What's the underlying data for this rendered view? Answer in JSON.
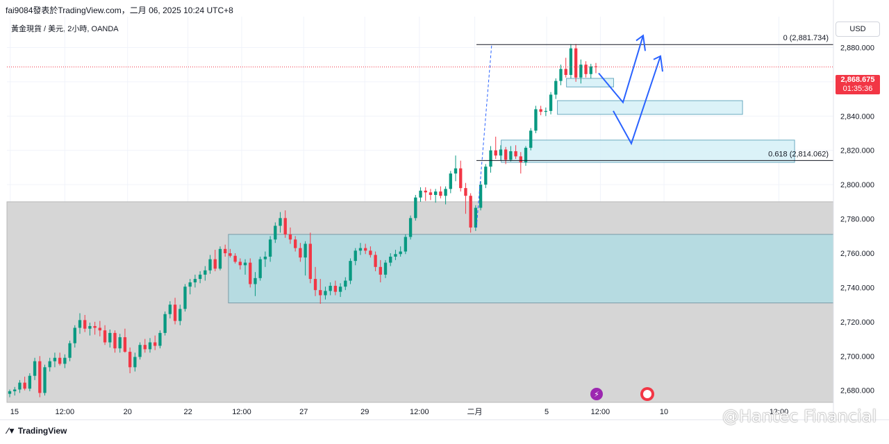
{
  "header": {
    "author_line": "fai9084發表於TradingView.com，二月 06, 2025 10:24 UTC+8",
    "symbol_line": "黃金現貨 / 美元, 2小時, OANDA",
    "currency": "USD",
    "footer_brand": "TradingView",
    "watermark": "@Hantec Financial"
  },
  "colors": {
    "up": "#089981",
    "down": "#f23645",
    "zone_grey": "#d6d6d6",
    "zone_teal": "#b2dce2",
    "zone_light": "#d7f1f7",
    "arrow": "#2962ff",
    "price_line": "#f23645"
  },
  "price_tag": {
    "price": "2,868.675",
    "countdown": "01:35:36"
  },
  "fib_labels": [
    {
      "text": "0 (2,881.734)",
      "price": 2881.734
    },
    {
      "text": "0.618 (2,814.062)",
      "price": 2814.062
    }
  ],
  "chart_data": {
    "type": "candlestick",
    "ylim": [
      2673,
      2898
    ],
    "y_ticks": [
      2680,
      2700,
      2720,
      2740,
      2760,
      2780,
      2800,
      2820,
      2840,
      2860,
      2880
    ],
    "y_tick_labels": [
      "2,680.000",
      "2,700.000",
      "2,720.000",
      "2,740.000",
      "2,760.000",
      "2,780.000",
      "2,800.000",
      "2,820.000",
      "2,840.000",
      "2,860.000",
      "2,880.000"
    ],
    "x_labels": [
      "15",
      "12:00",
      "20",
      "22",
      "12:00",
      "27",
      "29",
      "12:00",
      "二月",
      "5",
      "12:00",
      "10",
      "12:00"
    ],
    "last_price": 2868.675,
    "zones": [
      {
        "kind": "grey",
        "x_from": 0,
        "x_to": 1,
        "y_top": 2790,
        "y_bottom": 2673
      },
      {
        "kind": "teal",
        "x_from": 0.268,
        "x_to": 1,
        "y_top": 2771,
        "y_bottom": 2731
      },
      {
        "kind": "light",
        "x_from": 0.666,
        "x_to": 0.89,
        "y_top": 2849,
        "y_bottom": 2841
      },
      {
        "kind": "light",
        "x_from": 0.598,
        "x_to": 0.953,
        "y_top": 2826,
        "y_bottom": 2813
      },
      {
        "kind": "light",
        "x_from": 0.677,
        "x_to": 0.734,
        "y_top": 2862,
        "y_bottom": 2857
      }
    ],
    "candles_ohlc": [
      [
        2678.0,
        2680.5,
        2676.0,
        2679.5
      ],
      [
        2679.5,
        2682.0,
        2677.0,
        2680.5
      ],
      [
        2680.5,
        2686.0,
        2678.5,
        2684.5
      ],
      [
        2684.5,
        2688.0,
        2680.0,
        2681.0
      ],
      [
        2681.0,
        2690.0,
        2679.5,
        2688.5
      ],
      [
        2688.5,
        2699.0,
        2686.0,
        2697.0
      ],
      [
        2697.0,
        2700.0,
        2676.0,
        2678.5
      ],
      [
        2678.5,
        2695.0,
        2677.0,
        2693.5
      ],
      [
        2693.5,
        2699.0,
        2691.0,
        2697.0
      ],
      [
        2697.0,
        2702.0,
        2693.5,
        2699.0
      ],
      [
        2699.0,
        2702.0,
        2694.5,
        2695.5
      ],
      [
        2695.5,
        2701.0,
        2693.0,
        2699.0
      ],
      [
        2699.0,
        2709.0,
        2697.0,
        2707.5
      ],
      [
        2707.5,
        2718.0,
        2705.0,
        2716.5
      ],
      [
        2716.5,
        2725.0,
        2713.0,
        2721.0
      ],
      [
        2721.0,
        2724.0,
        2714.0,
        2716.0
      ],
      [
        2716.0,
        2719.5,
        2712.0,
        2717.5
      ],
      [
        2717.5,
        2720.0,
        2712.5,
        2716.5
      ],
      [
        2716.5,
        2720.5,
        2711.5,
        2715.0
      ],
      [
        2715.0,
        2718.0,
        2706.5,
        2708.0
      ],
      [
        2708.0,
        2715.5,
        2705.0,
        2713.5
      ],
      [
        2713.5,
        2715.0,
        2702.0,
        2704.5
      ],
      [
        2704.5,
        2713.0,
        2702.0,
        2711.0
      ],
      [
        2711.0,
        2716.0,
        2702.0,
        2702.5
      ],
      [
        2702.5,
        2705.0,
        2690.0,
        2693.5
      ],
      [
        2693.5,
        2702.0,
        2691.0,
        2699.5
      ],
      [
        2699.5,
        2708.0,
        2698.0,
        2706.5
      ],
      [
        2706.5,
        2710.0,
        2702.0,
        2704.0
      ],
      [
        2704.0,
        2710.5,
        2702.0,
        2708.0
      ],
      [
        2708.0,
        2712.0,
        2703.5,
        2706.0
      ],
      [
        2706.0,
        2715.0,
        2704.5,
        2713.5
      ],
      [
        2713.5,
        2726.0,
        2712.0,
        2724.5
      ],
      [
        2724.5,
        2732.0,
        2722.0,
        2730.0
      ],
      [
        2730.0,
        2734.0,
        2718.5,
        2720.5
      ],
      [
        2720.5,
        2730.0,
        2718.0,
        2727.5
      ],
      [
        2727.5,
        2742.0,
        2726.0,
        2740.5
      ],
      [
        2740.5,
        2745.0,
        2736.0,
        2743.0
      ],
      [
        2743.0,
        2747.5,
        2740.0,
        2745.0
      ],
      [
        2745.0,
        2749.5,
        2742.5,
        2747.5
      ],
      [
        2747.5,
        2752.5,
        2744.0,
        2750.0
      ],
      [
        2750.0,
        2759.0,
        2748.0,
        2756.5
      ],
      [
        2756.5,
        2762.0,
        2749.5,
        2751.0
      ],
      [
        2751.0,
        2764.0,
        2750.0,
        2762.5
      ],
      [
        2762.5,
        2765.0,
        2758.0,
        2760.0
      ],
      [
        2760.0,
        2762.5,
        2757.5,
        2758.5
      ],
      [
        2758.5,
        2760.0,
        2754.0,
        2755.0
      ],
      [
        2755.0,
        2757.0,
        2750.5,
        2753.0
      ],
      [
        2753.0,
        2756.5,
        2747.5,
        2754.5
      ],
      [
        2754.5,
        2757.0,
        2740.0,
        2742.0
      ],
      [
        2742.0,
        2749.0,
        2735.0,
        2745.5
      ],
      [
        2745.5,
        2758.0,
        2744.0,
        2756.5
      ],
      [
        2756.5,
        2761.0,
        2752.0,
        2758.0
      ],
      [
        2758.0,
        2770.0,
        2755.0,
        2768.0
      ],
      [
        2768.0,
        2778.0,
        2766.0,
        2776.0
      ],
      [
        2776.0,
        2784.0,
        2772.0,
        2780.5
      ],
      [
        2780.5,
        2785.0,
        2769.0,
        2771.0
      ],
      [
        2771.0,
        2775.0,
        2765.5,
        2768.0
      ],
      [
        2768.0,
        2770.0,
        2761.0,
        2763.0
      ],
      [
        2763.0,
        2766.0,
        2755.0,
        2757.5
      ],
      [
        2757.5,
        2767.0,
        2747.0,
        2765.5
      ],
      [
        2765.5,
        2772.0,
        2742.5,
        2745.0
      ],
      [
        2745.0,
        2752.0,
        2735.0,
        2738.5
      ],
      [
        2738.5,
        2745.0,
        2730.5,
        2735.5
      ],
      [
        2735.5,
        2740.5,
        2733.0,
        2738.0
      ],
      [
        2738.0,
        2743.0,
        2735.5,
        2741.0
      ],
      [
        2741.0,
        2744.0,
        2735.5,
        2737.5
      ],
      [
        2737.5,
        2742.5,
        2734.5,
        2740.5
      ],
      [
        2740.5,
        2746.0,
        2738.5,
        2744.0
      ],
      [
        2744.0,
        2757.0,
        2742.0,
        2755.5
      ],
      [
        2755.5,
        2763.0,
        2753.0,
        2761.5
      ],
      [
        2761.5,
        2766.0,
        2759.0,
        2763.0
      ],
      [
        2763.0,
        2765.5,
        2759.5,
        2761.5
      ],
      [
        2761.5,
        2764.0,
        2757.5,
        2759.0
      ],
      [
        2759.0,
        2761.0,
        2749.5,
        2752.0
      ],
      [
        2752.0,
        2756.0,
        2743.0,
        2747.5
      ],
      [
        2747.5,
        2756.0,
        2745.5,
        2754.5
      ],
      [
        2754.5,
        2760.0,
        2752.5,
        2758.0
      ],
      [
        2758.0,
        2762.0,
        2756.0,
        2759.5
      ],
      [
        2759.5,
        2764.0,
        2758.0,
        2761.0
      ],
      [
        2761.0,
        2771.0,
        2759.5,
        2769.5
      ],
      [
        2769.5,
        2782.0,
        2768.0,
        2780.5
      ],
      [
        2780.5,
        2794.0,
        2779.0,
        2792.5
      ],
      [
        2792.5,
        2798.5,
        2790.0,
        2796.5
      ],
      [
        2796.5,
        2798.5,
        2790.5,
        2795.5
      ],
      [
        2795.5,
        2797.5,
        2791.0,
        2794.0
      ],
      [
        2794.0,
        2797.5,
        2789.5,
        2796.0
      ],
      [
        2796.0,
        2799.0,
        2792.0,
        2793.5
      ],
      [
        2793.5,
        2799.0,
        2788.5,
        2797.5
      ],
      [
        2797.5,
        2808.0,
        2795.0,
        2806.5
      ],
      [
        2806.5,
        2817.0,
        2802.0,
        2809.5
      ],
      [
        2809.5,
        2814.0,
        2796.0,
        2798.0
      ],
      [
        2798.0,
        2801.0,
        2783.0,
        2793.5
      ],
      [
        2793.5,
        2795.0,
        2772.0,
        2775.0
      ],
      [
        2775.0,
        2788.0,
        2773.0,
        2786.5
      ],
      [
        2786.5,
        2802.0,
        2785.0,
        2800.0
      ],
      [
        2800.0,
        2812.0,
        2798.0,
        2810.5
      ],
      [
        2810.5,
        2822.5,
        2807.0,
        2820.0
      ],
      [
        2820.0,
        2828.0,
        2815.0,
        2817.0
      ],
      [
        2817.0,
        2823.0,
        2814.0,
        2820.5
      ],
      [
        2820.5,
        2822.0,
        2812.0,
        2814.5
      ],
      [
        2814.5,
        2822.5,
        2813.5,
        2819.5
      ],
      [
        2819.5,
        2823.0,
        2815.0,
        2816.5
      ],
      [
        2816.5,
        2819.0,
        2806.5,
        2813.0
      ],
      [
        2813.0,
        2822.5,
        2811.0,
        2821.5
      ],
      [
        2821.5,
        2833.0,
        2820.0,
        2831.5
      ],
      [
        2831.5,
        2846.0,
        2830.0,
        2844.0
      ],
      [
        2844.0,
        2846.0,
        2840.5,
        2842.5
      ],
      [
        2842.5,
        2845.0,
        2840.0,
        2843.0
      ],
      [
        2843.0,
        2854.0,
        2841.0,
        2852.5
      ],
      [
        2852.5,
        2862.0,
        2850.0,
        2860.5
      ],
      [
        2860.5,
        2870.0,
        2858.0,
        2867.5
      ],
      [
        2867.5,
        2874.0,
        2862.5,
        2864.0
      ],
      [
        2864.0,
        2882.0,
        2862.0,
        2879.5
      ],
      [
        2879.5,
        2882.0,
        2860.0,
        2862.5
      ],
      [
        2862.5,
        2873.0,
        2859.0,
        2870.0
      ],
      [
        2870.0,
        2872.0,
        2862.5,
        2864.5
      ],
      [
        2864.5,
        2870.5,
        2862.0,
        2869.0
      ],
      [
        2869.0,
        2871.0,
        2865.0,
        2868.675
      ]
    ]
  }
}
